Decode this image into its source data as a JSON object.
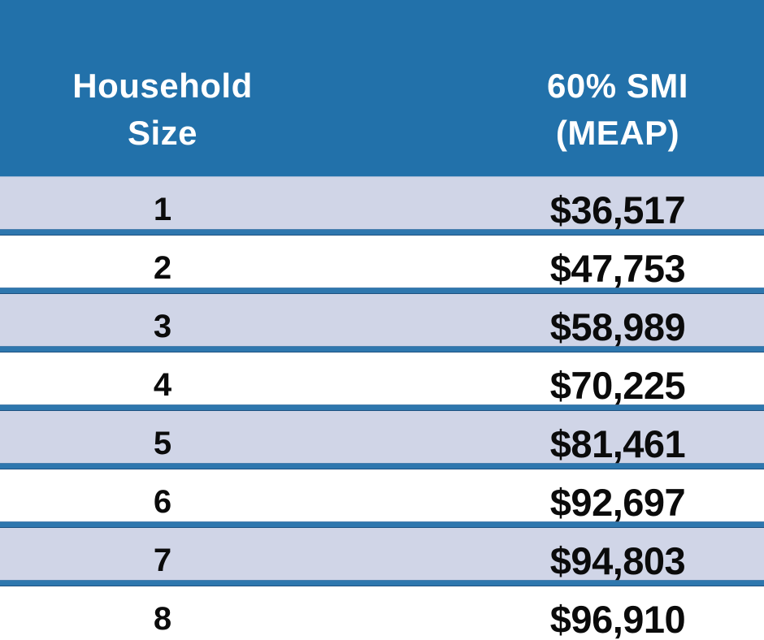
{
  "header": {
    "col1_line1": "Household",
    "col1_line2": "Size",
    "col2_line1": "60% SMI",
    "col2_line2": "(MEAP)"
  },
  "table": {
    "rows": [
      {
        "size": "1",
        "amount": "$36,517"
      },
      {
        "size": "2",
        "amount": "$47,753"
      },
      {
        "size": "3",
        "amount": "$58,989"
      },
      {
        "size": "4",
        "amount": "$70,225"
      },
      {
        "size": "5",
        "amount": "$81,461"
      },
      {
        "size": "6",
        "amount": "$92,697"
      },
      {
        "size": "7",
        "amount": "$94,803"
      },
      {
        "size": "8",
        "amount": "$96,910"
      }
    ]
  },
  "chart_data": {
    "type": "table",
    "title": "",
    "columns": [
      "Household Size",
      "60% SMI (MEAP)"
    ],
    "categories": [
      "1",
      "2",
      "3",
      "4",
      "5",
      "6",
      "7",
      "8"
    ],
    "values": [
      36517,
      47753,
      58989,
      70225,
      81461,
      92697,
      94803,
      96910
    ],
    "value_labels": [
      "$36,517",
      "$47,753",
      "$58,989",
      "$70,225",
      "$81,461",
      "$92,697",
      "$94,803",
      "$96,910"
    ],
    "layout_hints": {
      "striped_rows": true,
      "stripe_style": "odd rows lavender, even rows white",
      "separator": "thick blue horizontal rules between rows",
      "header": "blue band with white bold two-line column titles"
    }
  },
  "colors": {
    "header_bg": "#2271aa",
    "header_text": "#ffffff",
    "row_alt_bg": "#d0d5e7",
    "row_bg": "#ffffff",
    "sep_core": "#2e77ae",
    "sep_edge_dark": "#1d5181",
    "sep_edge_light": "#4a7fae",
    "header_edge": "#9db8d6",
    "body_text": "#0b0b0b"
  }
}
